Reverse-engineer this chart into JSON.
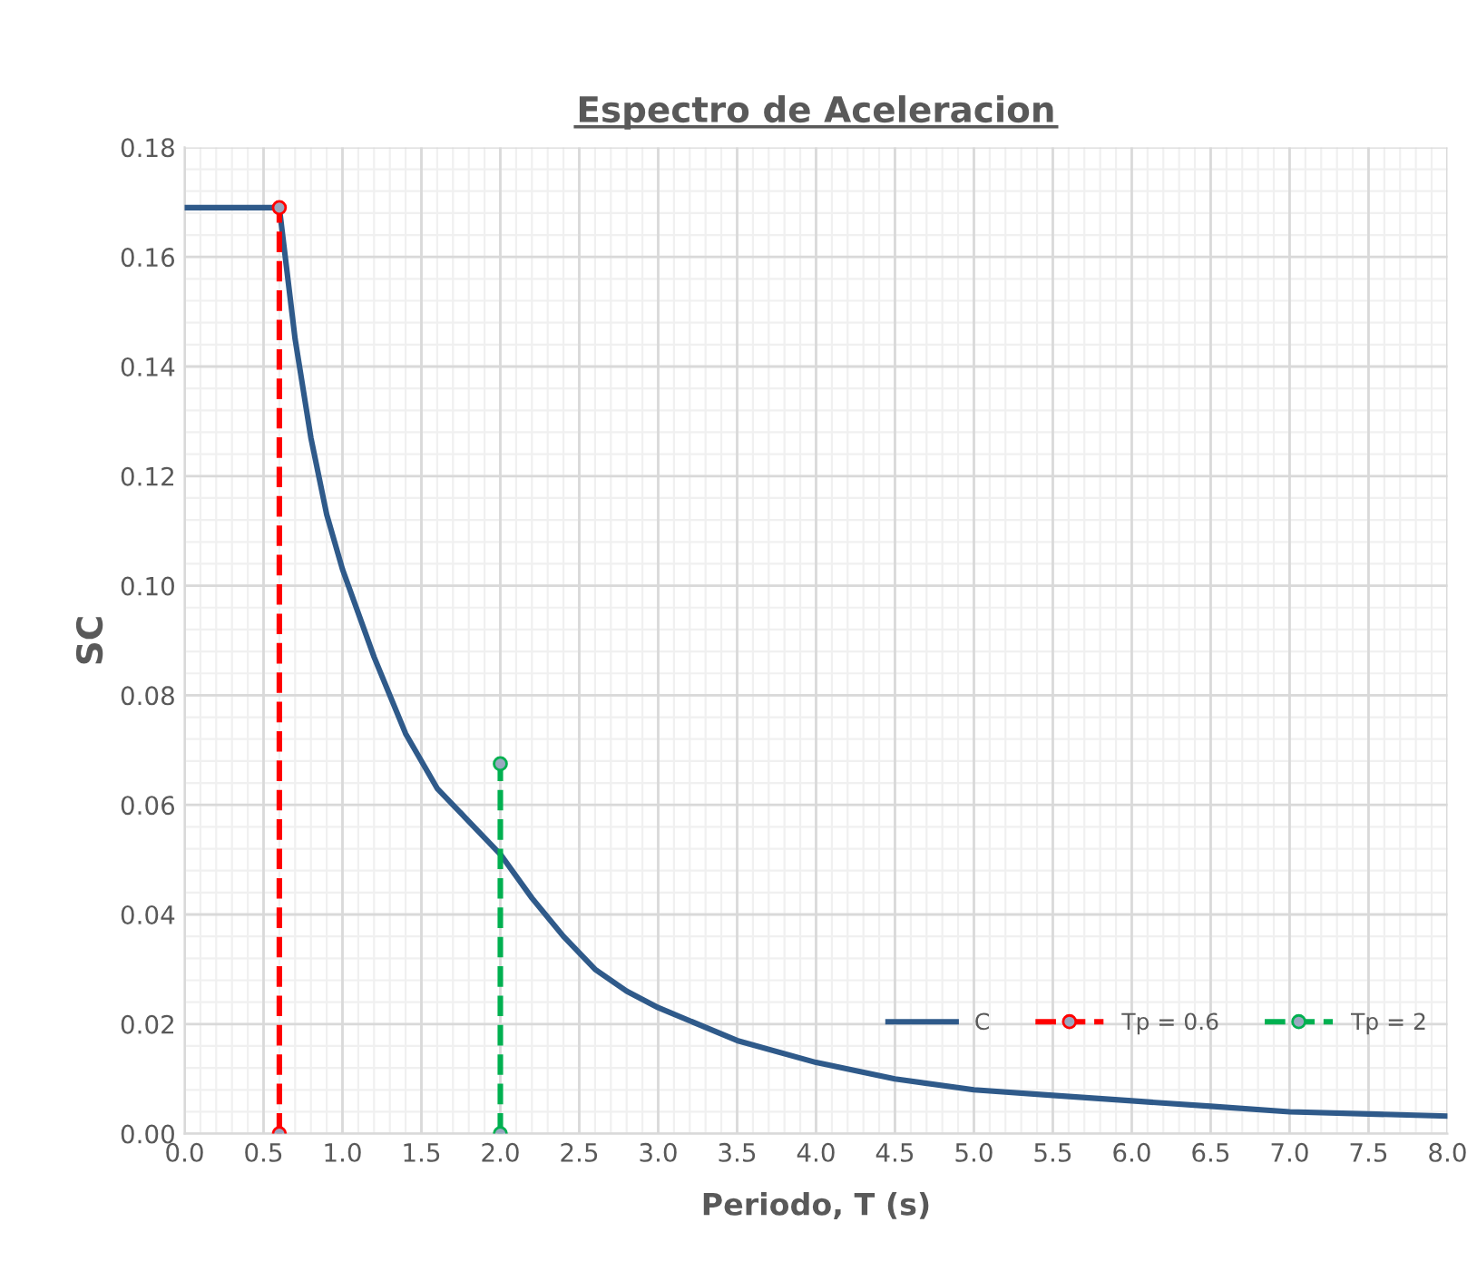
{
  "chart_data": {
    "type": "line",
    "title": "Espectro de Aceleracion",
    "xlabel": "Periodo, T (s)",
    "ylabel": "SC",
    "xlim": [
      0,
      8
    ],
    "ylim": [
      0,
      0.18
    ],
    "xticks": [
      {
        "value": 0,
        "label": "0.0"
      },
      0.5,
      {
        "value": 1,
        "label": "1.0"
      },
      1.5,
      {
        "value": 2,
        "label": "2.0"
      },
      2.5,
      {
        "value": 3,
        "label": "3.0"
      },
      3.5,
      {
        "value": 4,
        "label": "4.0"
      },
      4.5,
      {
        "value": 5,
        "label": "5.0"
      },
      5.5,
      {
        "value": 6,
        "label": "6.0"
      },
      6.5,
      {
        "value": 7,
        "label": "7.0"
      },
      7.5,
      {
        "value": 8,
        "label": "8.0"
      }
    ],
    "yticks": [
      {
        "value": 0,
        "label": "0.00"
      },
      0.02,
      0.04,
      0.06,
      0.08,
      {
        "value": 0.1,
        "label": "0.10"
      },
      0.12,
      0.14,
      0.16,
      0.18
    ],
    "grid": true,
    "legend": "right",
    "series": [
      {
        "name": "C",
        "color": "#2f5a8a",
        "line_style": "solid",
        "marker": "none",
        "x": [
          0,
          0.6,
          0.7,
          0.8,
          0.9,
          1.0,
          1.2,
          1.4,
          1.6,
          1.8,
          2.0,
          2.2,
          2.4,
          2.6,
          2.8,
          3.0,
          3.5,
          4.0,
          4.5,
          5.0,
          5.5,
          6.0,
          6.5,
          7.0,
          7.5,
          8.0
        ],
        "values": [
          0.169,
          0.169,
          0.145,
          0.127,
          0.113,
          0.103,
          0.087,
          0.073,
          0.063,
          0.057,
          0.051,
          0.043,
          0.036,
          0.03,
          0.026,
          0.023,
          0.017,
          0.013,
          0.01,
          0.008,
          0.007,
          0.006,
          0.005,
          0.004,
          0.0036,
          0.0032
        ]
      },
      {
        "name": "Tp = 0.6",
        "color": "#ff0000",
        "line_style": "dashed",
        "marker": "circle",
        "x": [
          0.6,
          0.6
        ],
        "values": [
          0,
          0.169
        ]
      },
      {
        "name": "Tp = 2",
        "color": "#00b050",
        "line_style": "dashed",
        "marker": "circle",
        "x": [
          2,
          2
        ],
        "values": [
          0,
          0.0675
        ]
      }
    ]
  }
}
